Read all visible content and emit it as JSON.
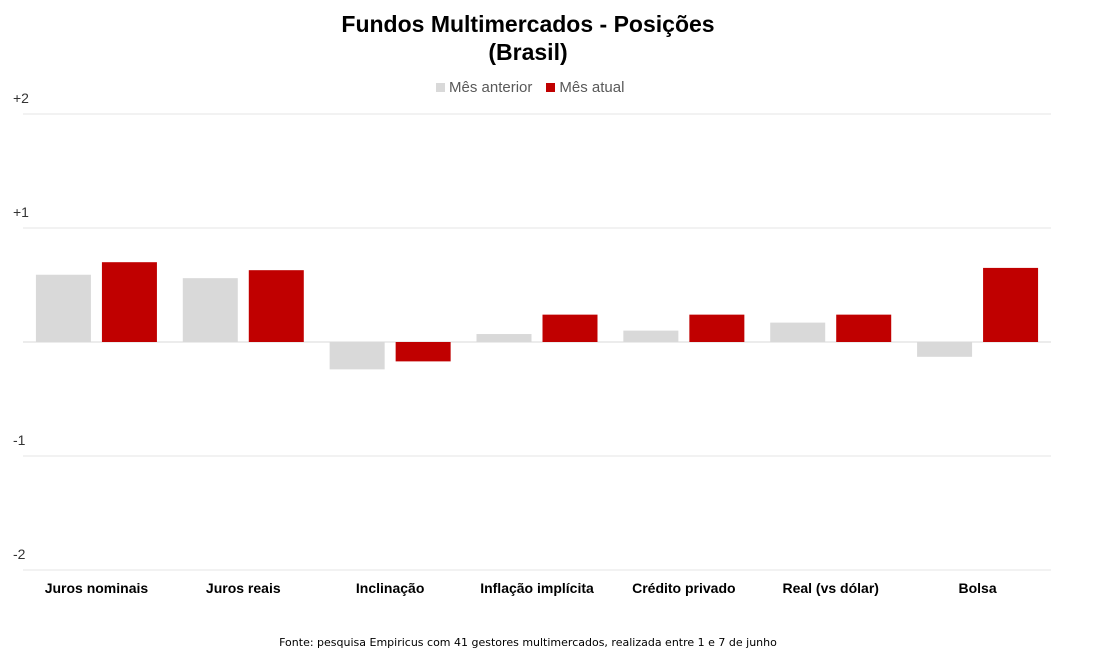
{
  "chart_data": {
    "type": "bar",
    "title": [
      "Fundos Multimercados - Posições",
      "(Brasil)"
    ],
    "categories": [
      "Juros nominais",
      "Juros reais",
      "Inclinação",
      "Inflação implícita",
      "Crédito privado",
      "Real (vs dólar)",
      "Bolsa"
    ],
    "series": [
      {
        "name": "Mês anterior",
        "color": "#d9d9d9",
        "values": [
          0.59,
          0.56,
          -0.24,
          0.07,
          0.1,
          0.17,
          -0.13
        ]
      },
      {
        "name": "Mês atual",
        "color": "#c00000",
        "values": [
          0.7,
          0.63,
          -0.17,
          0.24,
          0.24,
          0.24,
          0.65
        ]
      }
    ],
    "ylim": [
      -2,
      2
    ],
    "yticks": [
      {
        "value": 2,
        "label": "+2"
      },
      {
        "value": 1,
        "label": "+1"
      },
      {
        "value": -1,
        "label": "-1"
      },
      {
        "value": -2,
        "label": "-2"
      }
    ],
    "grid": true,
    "legend_position": "top-center",
    "source": "Fonte: pesquisa Empiricus com 41 gestores multimercados, realizada entre 1 e 7 de junho"
  }
}
